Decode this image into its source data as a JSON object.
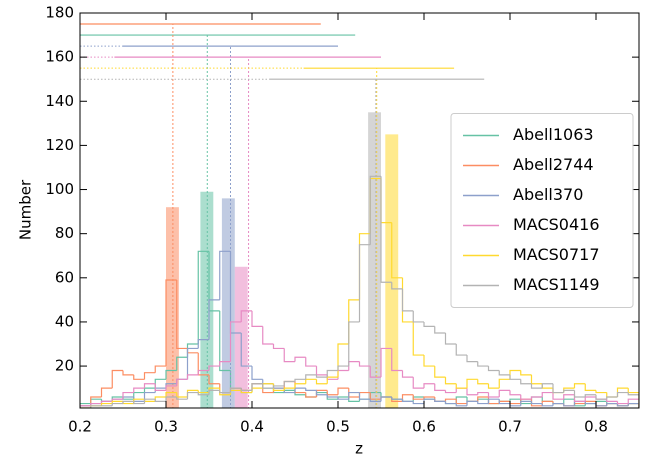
{
  "chart_data": {
    "type": "step-histogram",
    "xlabel": "z",
    "ylabel": "Number",
    "xlim": [
      0.2,
      0.85
    ],
    "ylim": [
      1,
      180
    ],
    "xticks": [
      0.2,
      0.3,
      0.4,
      0.5,
      0.6,
      0.7,
      0.8
    ],
    "yticks": [
      20,
      40,
      60,
      80,
      100,
      120,
      140,
      160,
      180
    ],
    "legend": "center right",
    "bins": [
      0.2,
      0.2125,
      0.225,
      0.2375,
      0.25,
      0.2625,
      0.275,
      0.2875,
      0.3,
      0.3125,
      0.325,
      0.3375,
      0.35,
      0.3625,
      0.375,
      0.3875,
      0.4,
      0.4125,
      0.425,
      0.4375,
      0.45,
      0.4625,
      0.475,
      0.4875,
      0.5,
      0.5125,
      0.525,
      0.5375,
      0.55,
      0.5625,
      0.575,
      0.5875,
      0.6,
      0.6125,
      0.625,
      0.6375,
      0.65,
      0.6625,
      0.675,
      0.6875,
      0.7,
      0.7125,
      0.725,
      0.7375,
      0.75,
      0.7625,
      0.775,
      0.7875,
      0.8,
      0.8125,
      0.825,
      0.8375,
      0.85
    ],
    "series": [
      {
        "name": "Abell1063",
        "color": "#66c2a5",
        "z": 0.348,
        "range": [
          0.2,
          0.52
        ],
        "range_y": 170,
        "peak_bin": [
          0.34,
          0.355
        ],
        "peak_value": 99,
        "values": [
          3,
          5,
          4,
          6,
          5,
          8,
          10,
          14,
          18,
          24,
          30,
          72,
          45,
          18,
          10,
          8,
          12,
          10,
          8,
          9,
          7,
          6,
          8,
          5,
          6,
          4,
          5,
          8,
          6,
          5,
          4,
          6,
          5,
          4,
          3,
          6,
          4,
          5,
          3,
          4,
          5,
          3,
          6,
          4,
          3,
          5,
          2,
          3,
          4,
          3,
          2,
          3
        ]
      },
      {
        "name": "Abell2744",
        "color": "#fc8d62",
        "z": 0.308,
        "range": [
          0.2,
          0.48
        ],
        "range_y": 175,
        "peak_bin": [
          0.3,
          0.315
        ],
        "peak_value": 92,
        "values": [
          2,
          6,
          10,
          18,
          16,
          14,
          17,
          20,
          59,
          28,
          26,
          16,
          12,
          8,
          10,
          9,
          12,
          8,
          10,
          13,
          8,
          6,
          9,
          7,
          10,
          6,
          8,
          5,
          6,
          4,
          7,
          5,
          6,
          4,
          5,
          3,
          4,
          6,
          3,
          4,
          3,
          5,
          2,
          4,
          3,
          2,
          3,
          4,
          2,
          3,
          2,
          3
        ]
      },
      {
        "name": "Abell370",
        "color": "#8da0cb",
        "z": 0.375,
        "range": [
          0.25,
          0.5
        ],
        "range_y": 165,
        "peak_bin": [
          0.365,
          0.38
        ],
        "peak_value": 96,
        "values": [
          2,
          3,
          4,
          5,
          6,
          4,
          8,
          10,
          12,
          14,
          28,
          32,
          50,
          72,
          35,
          20,
          14,
          12,
          10,
          8,
          10,
          9,
          7,
          6,
          5,
          8,
          5,
          4,
          6,
          5,
          4,
          3,
          5,
          4,
          3,
          2,
          4,
          3,
          5,
          3,
          2,
          4,
          3,
          2,
          3,
          2,
          4,
          3,
          2,
          3,
          2,
          3
        ]
      },
      {
        "name": "MACS0416",
        "color": "#e78ac3",
        "z": 0.396,
        "range": [
          0.24,
          0.55
        ],
        "range_y": 160,
        "peak_bin": [
          0.38,
          0.395
        ],
        "peak_value": 65,
        "values": [
          2,
          3,
          4,
          5,
          8,
          10,
          12,
          9,
          11,
          14,
          16,
          18,
          20,
          22,
          40,
          45,
          38,
          30,
          28,
          22,
          24,
          20,
          16,
          14,
          18,
          22,
          20,
          15,
          28,
          18,
          15,
          10,
          12,
          9,
          8,
          10,
          7,
          8,
          6,
          9,
          7,
          5,
          6,
          8,
          5,
          7,
          4,
          6,
          5,
          4,
          3,
          5
        ]
      },
      {
        "name": "MACS0717",
        "color": "#ffd92f",
        "z": 0.545,
        "range": [
          0.46,
          0.635
        ],
        "range_y": 155,
        "peak_bin": [
          0.555,
          0.57
        ],
        "peak_value": 125,
        "values": [
          1,
          2,
          3,
          4,
          3,
          5,
          4,
          6,
          8,
          6,
          9,
          8,
          10,
          7,
          9,
          8,
          10,
          12,
          9,
          10,
          12,
          14,
          12,
          15,
          30,
          50,
          80,
          105,
          85,
          60,
          40,
          25,
          20,
          15,
          12,
          10,
          14,
          12,
          10,
          14,
          18,
          16,
          12,
          10,
          8,
          10,
          12,
          9,
          8,
          6,
          10,
          8
        ]
      },
      {
        "name": "MACS1149",
        "color": "#b3b3b3",
        "z": 0.544,
        "range": [
          0.42,
          0.67
        ],
        "range_y": 150,
        "peak_bin": [
          0.535,
          0.55
        ],
        "peak_value": 135,
        "values": [
          1,
          2,
          2,
          3,
          4,
          3,
          5,
          4,
          6,
          5,
          8,
          7,
          9,
          8,
          10,
          9,
          12,
          10,
          11,
          13,
          14,
          16,
          15,
          18,
          20,
          40,
          75,
          106,
          58,
          55,
          45,
          40,
          38,
          35,
          30,
          25,
          22,
          20,
          18,
          16,
          14,
          12,
          10,
          12,
          8,
          9,
          6,
          7,
          5,
          6,
          8,
          7
        ]
      }
    ]
  }
}
